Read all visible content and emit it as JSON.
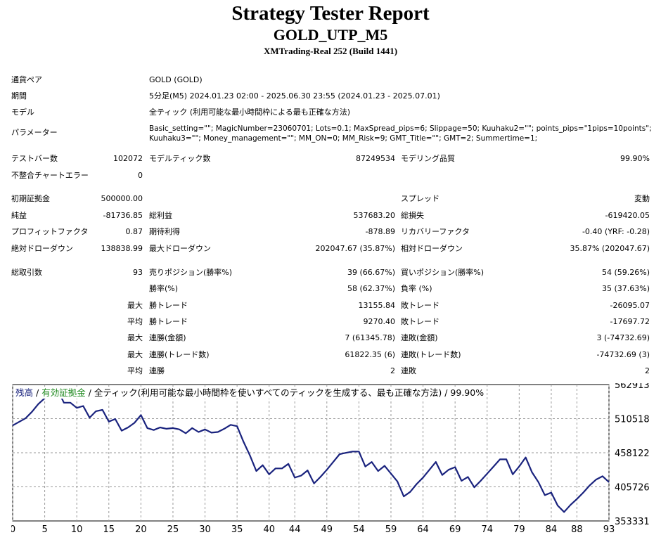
{
  "header": {
    "title": "Strategy Tester Report",
    "subtitle": "GOLD_UTP_M5",
    "source": "XMTrading-Real 252 (Build 1441)"
  },
  "info": {
    "symbol": {
      "label": "通貨ペア",
      "value": "GOLD (GOLD)"
    },
    "period": {
      "label": "期間",
      "value": "5分足(M5) 2024.01.23 02:00 - 2025.06.30 23:55 (2024.01.23 - 2025.07.01)"
    },
    "model": {
      "label": "モデル",
      "value": "全ティック (利用可能な最小時間枠による最も正確な方法)"
    },
    "params": {
      "label": "パラメーター",
      "line1": "Basic_setting=\"\"; MagicNumber=23060701; Lots=0.1; MaxSpread_pips=6; Slippage=50; Kuuhaku2=\"\"; points_pips=\"1pips=10points\";",
      "line2": "Kuuhaku3=\"\"; Money_management=\"\"; MM_ON=0; MM_Risk=9; GMT_Title=\"\"; GMT=2; Summertime=1;"
    }
  },
  "stats": {
    "bars": {
      "label": "テストバー数",
      "value": "102072"
    },
    "ticks": {
      "label": "モデルティック数",
      "value": "87249534"
    },
    "quality": {
      "label": "モデリング品質",
      "value": "99.90%"
    },
    "mismatch": {
      "label": "不整合チャートエラー",
      "value": "0"
    },
    "deposit": {
      "label": "初期証拠金",
      "value": "500000.00"
    },
    "spread": {
      "label": "スプレッド",
      "value": "変動"
    },
    "net_profit": {
      "label": "純益",
      "value": "-81736.85"
    },
    "gross_profit": {
      "label": "総利益",
      "value": "537683.20"
    },
    "gross_loss": {
      "label": "総損失",
      "value": "-619420.05"
    },
    "profit_factor": {
      "label": "プロフィットファクタ",
      "value": "0.87"
    },
    "expected_payoff": {
      "label": "期待利得",
      "value": "-878.89"
    },
    "recovery": {
      "label": "リカバリーファクタ",
      "value": "-0.40 (YRF: -0.28)"
    },
    "abs_dd": {
      "label": "絶対ドローダウン",
      "value": "138838.99"
    },
    "max_dd": {
      "label": "最大ドローダウン",
      "value": "202047.67 (35.87%)"
    },
    "rel_dd": {
      "label": "相対ドローダウン",
      "value": "35.87% (202047.67)"
    },
    "total_trades": {
      "label": "総取引数",
      "value": "93"
    },
    "short_pos": {
      "label": "売りポジション(勝率%)",
      "value": "39 (66.67%)"
    },
    "long_pos": {
      "label": "買いポジション(勝率%)",
      "value": "54 (59.26%)"
    },
    "win_rate": {
      "label": "勝率(%)",
      "value": "58 (62.37%)"
    },
    "loss_rate": {
      "label": "負率 (%)",
      "value": "35 (37.63%)"
    },
    "max_label": "最大",
    "avg_label": "平均",
    "largest_win": {
      "label": "勝トレード",
      "value": "13155.84"
    },
    "largest_loss": {
      "label": "敗トレード",
      "value": "-26095.07"
    },
    "avg_win": {
      "label": "勝トレード",
      "value": "9270.40"
    },
    "avg_loss": {
      "label": "敗トレード",
      "value": "-17697.72"
    },
    "max_cons_wins": {
      "label": "連勝(金額)",
      "value": "7 (61345.78)"
    },
    "max_cons_losses": {
      "label": "連敗(金額)",
      "value": "3 (-74732.69)"
    },
    "max_cons_profit": {
      "label": "連勝(トレード数)",
      "value": "61822.35 (6)"
    },
    "max_cons_loss": {
      "label": "連敗(トレード数)",
      "value": "-74732.69 (3)"
    },
    "avg_cons_wins": {
      "label": "連勝",
      "value": "2"
    },
    "avg_cons_losses": {
      "label": "連敗",
      "value": "2"
    }
  },
  "chart_data": {
    "type": "line",
    "legend": {
      "balance": "残高",
      "sep1": " / ",
      "equity": "有効証拠金",
      "sep2": " / ",
      "model": "全ティック(利用可能な最小時間枠を使いすべてのティックを生成する、最も正確な方法) / 99.90%"
    },
    "series_color": "#1a237e",
    "xticks": [
      "0",
      "5",
      "10",
      "15",
      "20",
      "25",
      "30",
      "35",
      "40",
      "44",
      "49",
      "54",
      "59",
      "64",
      "69",
      "74",
      "79",
      "84",
      "88",
      "93"
    ],
    "yticks": [
      "562913",
      "510518",
      "458122",
      "405726",
      "353331"
    ],
    "ylim": [
      353331,
      562913
    ],
    "xlim": [
      0,
      93
    ],
    "x": [
      0,
      2,
      3,
      4,
      5,
      6,
      7,
      8,
      9,
      10,
      11,
      12,
      13,
      14,
      15,
      16,
      17,
      18,
      19,
      20,
      21,
      22,
      23,
      24,
      25,
      26,
      27,
      28,
      29,
      30,
      31,
      32,
      33,
      34,
      35,
      36,
      37,
      38,
      39,
      40,
      41,
      42,
      43,
      44,
      45,
      46,
      47,
      48,
      49,
      50,
      51,
      52,
      53,
      54,
      55,
      56,
      57,
      58,
      59,
      60,
      61,
      62,
      63,
      64,
      65,
      66,
      67,
      68,
      69,
      70,
      71,
      72,
      73,
      74,
      75,
      76,
      77,
      78,
      79,
      80,
      81,
      82,
      83,
      84,
      85,
      86,
      87,
      88,
      89,
      90,
      91,
      92,
      93
    ],
    "y": [
      500000,
      511000,
      521000,
      533000,
      542000,
      549000,
      555000,
      535000,
      535000,
      527000,
      530000,
      512000,
      522000,
      524000,
      506000,
      510000,
      492000,
      497000,
      504000,
      516000,
      496000,
      493000,
      497000,
      495000,
      496000,
      494000,
      488000,
      496000,
      490000,
      494000,
      489000,
      490000,
      495000,
      501000,
      499000,
      475000,
      454000,
      430000,
      439000,
      425000,
      434000,
      434000,
      441000,
      420000,
      423000,
      431000,
      411000,
      421000,
      432000,
      444000,
      456000,
      458000,
      460000,
      460000,
      437000,
      444000,
      430000,
      438000,
      426000,
      414000,
      391000,
      398000,
      410000,
      420000,
      432000,
      444000,
      424000,
      432000,
      436000,
      415000,
      421000,
      405000,
      415000,
      426000,
      437000,
      448000,
      448000,
      425000,
      437000,
      451000,
      428000,
      413000,
      393000,
      397000,
      377000,
      367000,
      378000,
      387000,
      397000,
      408000,
      417000,
      422000,
      413000
    ]
  }
}
